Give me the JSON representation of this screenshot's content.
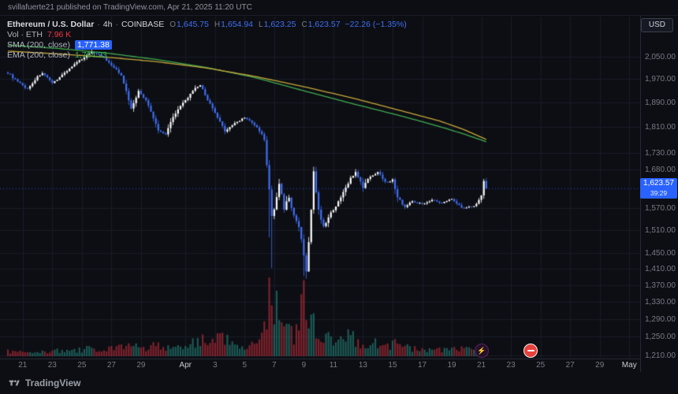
{
  "attribution": {
    "text": "svillafuerte21 published on TradingView.com, Apr 21, 2025 11:20 UTC"
  },
  "legend": {
    "symbol_title": "Ethereum / U.S. Dollar",
    "separator": "·",
    "interval": "4h",
    "exchange": "COINBASE",
    "ohlc": {
      "o_key": "O",
      "o": "1,645.75",
      "h_key": "H",
      "h": "1,654.94",
      "l_key": "L",
      "l": "1,623.25",
      "c_key": "C",
      "c": "1,623.57",
      "change": "−22.26 (−1.35%)"
    },
    "volume": {
      "label": "Vol · ETH",
      "value": "7.96 K"
    },
    "sma": {
      "label": "SMA (200, close)",
      "value": "1,771.38"
    },
    "ema": {
      "label": "EMA (200, close)",
      "value": "1,764.23"
    }
  },
  "toolbar": {
    "currency_label": "USD"
  },
  "price_tag": {
    "price": "1,623.57",
    "countdown": "39:29"
  },
  "markers": [
    {
      "name": "lightning-emoji-marker",
      "glyph": "⚡"
    },
    {
      "name": "no-entry-emoji-marker",
      "glyph": "⛔"
    }
  ],
  "footer": {
    "brand": "TradingView"
  },
  "colors": {
    "background": "#0d0e13",
    "grid": "#191d28",
    "text_muted": "#787b86",
    "text_bright": "#d1d4dc",
    "candle_up": "#ffffff",
    "candle_down": "#3f6ff5",
    "volume_up": "rgba(42,166,152,0.5)",
    "volume_down": "rgba(242,54,69,0.5)",
    "sma_line": "#c7a93a",
    "ema_line": "#3fae52",
    "accent_blue": "#2962ff",
    "volume_value": "#f23645"
  },
  "chart_data": {
    "type": "candlestick",
    "symbol": "ETHUSD",
    "exchange": "COINBASE",
    "interval": "4h",
    "price_scale": "log",
    "visible_price_range": [
      1200,
      2180
    ],
    "last_close": 1623.57,
    "candles_per_day": 6,
    "price_axis_labels": [
      "2,050.00",
      "1,970.00",
      "1,890.00",
      "1,810.00",
      "1,730.00",
      "1,680.00",
      "1,570.00",
      "1,510.00",
      "1,450.00",
      "1,410.00",
      "1,370.00",
      "1,330.00",
      "1,290.00",
      "1,250.00",
      "1,210.00"
    ],
    "time_axis": [
      {
        "label": "21",
        "day": 1
      },
      {
        "label": "23",
        "day": 3
      },
      {
        "label": "25",
        "day": 5
      },
      {
        "label": "27",
        "day": 7
      },
      {
        "label": "29",
        "day": 9
      },
      {
        "label": "Apr",
        "day": 12,
        "major": true
      },
      {
        "label": "3",
        "day": 14
      },
      {
        "label": "5",
        "day": 16
      },
      {
        "label": "7",
        "day": 18
      },
      {
        "label": "9",
        "day": 20
      },
      {
        "label": "11",
        "day": 22
      },
      {
        "label": "13",
        "day": 24
      },
      {
        "label": "15",
        "day": 26
      },
      {
        "label": "17",
        "day": 28
      },
      {
        "label": "19",
        "day": 30
      },
      {
        "label": "21",
        "day": 32
      },
      {
        "label": "23",
        "day": 34
      },
      {
        "label": "25",
        "day": 36
      },
      {
        "label": "27",
        "day": 38
      },
      {
        "label": "29",
        "day": 40
      },
      {
        "label": "May",
        "day": 42,
        "major": true
      }
    ],
    "close_anchors": [
      [
        0,
        1992
      ],
      [
        4,
        1960
      ],
      [
        8,
        1936
      ],
      [
        12,
        1978
      ],
      [
        14,
        1992
      ],
      [
        18,
        1955
      ],
      [
        22,
        1985
      ],
      [
        26,
        2015
      ],
      [
        30,
        2042
      ],
      [
        34,
        2068
      ],
      [
        38,
        2052
      ],
      [
        42,
        2018
      ],
      [
        46,
        1985
      ],
      [
        50,
        1870
      ],
      [
        53,
        1928
      ],
      [
        56,
        1898
      ],
      [
        61,
        1800
      ],
      [
        64,
        1788
      ],
      [
        67,
        1845
      ],
      [
        70,
        1878
      ],
      [
        73,
        1908
      ],
      [
        76,
        1938
      ],
      [
        78,
        1950
      ],
      [
        81,
        1900
      ],
      [
        84,
        1855
      ],
      [
        88,
        1798
      ],
      [
        92,
        1822
      ],
      [
        96,
        1842
      ],
      [
        99,
        1824
      ],
      [
        102,
        1798
      ],
      [
        104,
        1770
      ],
      [
        106,
        1618
      ],
      [
        107,
        1545
      ],
      [
        108,
        1565
      ],
      [
        110,
        1638
      ],
      [
        112,
        1570
      ],
      [
        114,
        1600
      ],
      [
        116,
        1545
      ],
      [
        118,
        1515
      ],
      [
        120,
        1448
      ],
      [
        121,
        1398
      ],
      [
        123,
        1562
      ],
      [
        124,
        1675
      ],
      [
        126,
        1560
      ],
      [
        128,
        1522
      ],
      [
        130,
        1542
      ],
      [
        133,
        1572
      ],
      [
        136,
        1612
      ],
      [
        139,
        1655
      ],
      [
        141,
        1670
      ],
      [
        144,
        1628
      ],
      [
        147,
        1660
      ],
      [
        150,
        1672
      ],
      [
        153,
        1645
      ],
      [
        156,
        1648
      ],
      [
        158,
        1600
      ],
      [
        161,
        1572
      ],
      [
        164,
        1588
      ],
      [
        168,
        1580
      ],
      [
        172,
        1592
      ],
      [
        176,
        1582
      ],
      [
        180,
        1596
      ],
      [
        184,
        1570
      ],
      [
        188,
        1572
      ],
      [
        190,
        1580
      ],
      [
        192,
        1605
      ],
      [
        193,
        1646
      ],
      [
        194,
        1623.57
      ]
    ],
    "volume_anchors": [
      [
        0,
        5
      ],
      [
        10,
        4
      ],
      [
        20,
        6
      ],
      [
        30,
        7
      ],
      [
        34,
        9
      ],
      [
        40,
        7
      ],
      [
        46,
        9
      ],
      [
        50,
        13
      ],
      [
        56,
        9
      ],
      [
        61,
        12
      ],
      [
        66,
        8
      ],
      [
        72,
        10
      ],
      [
        78,
        17
      ],
      [
        82,
        20
      ],
      [
        86,
        22
      ],
      [
        90,
        15
      ],
      [
        94,
        10
      ],
      [
        99,
        12
      ],
      [
        104,
        30
      ],
      [
        106,
        60
      ],
      [
        107,
        95
      ],
      [
        108,
        62
      ],
      [
        110,
        42
      ],
      [
        112,
        32
      ],
      [
        114,
        26
      ],
      [
        116,
        22
      ],
      [
        118,
        30
      ],
      [
        120,
        65
      ],
      [
        121,
        52
      ],
      [
        123,
        46
      ],
      [
        124,
        40
      ],
      [
        126,
        28
      ],
      [
        128,
        24
      ],
      [
        130,
        20
      ],
      [
        133,
        16
      ],
      [
        136,
        18
      ],
      [
        139,
        24
      ],
      [
        141,
        16
      ],
      [
        144,
        12
      ],
      [
        147,
        14
      ],
      [
        150,
        15
      ],
      [
        153,
        11
      ],
      [
        156,
        12
      ],
      [
        158,
        14
      ],
      [
        161,
        10
      ],
      [
        164,
        8
      ],
      [
        168,
        7
      ],
      [
        172,
        8
      ],
      [
        176,
        7
      ],
      [
        180,
        9
      ],
      [
        184,
        8
      ],
      [
        188,
        7
      ],
      [
        191,
        6
      ],
      [
        193,
        10
      ],
      [
        194,
        7
      ]
    ],
    "special_wicks": [
      {
        "i": 34,
        "high": 2086
      },
      {
        "i": 106,
        "low": 1490
      },
      {
        "i": 107,
        "low": 1411
      },
      {
        "i": 120,
        "low": 1392
      },
      {
        "i": 121,
        "low": 1385
      },
      {
        "i": 124,
        "high": 1688
      },
      {
        "i": 194,
        "high": 1654.94,
        "low": 1623.25
      }
    ],
    "sma_anchors": [
      [
        0,
        2070
      ],
      [
        20,
        2060
      ],
      [
        40,
        2048
      ],
      [
        60,
        2032
      ],
      [
        80,
        2010
      ],
      [
        100,
        1980
      ],
      [
        120,
        1944
      ],
      [
        140,
        1905
      ],
      [
        160,
        1862
      ],
      [
        175,
        1830
      ],
      [
        185,
        1802
      ],
      [
        194,
        1771
      ]
    ],
    "ema_anchors": [
      [
        0,
        2092
      ],
      [
        20,
        2080
      ],
      [
        40,
        2063
      ],
      [
        60,
        2040
      ],
      [
        80,
        2012
      ],
      [
        100,
        1976
      ],
      [
        120,
        1930
      ],
      [
        140,
        1886
      ],
      [
        160,
        1845
      ],
      [
        175,
        1812
      ],
      [
        185,
        1788
      ],
      [
        194,
        1764
      ]
    ]
  }
}
